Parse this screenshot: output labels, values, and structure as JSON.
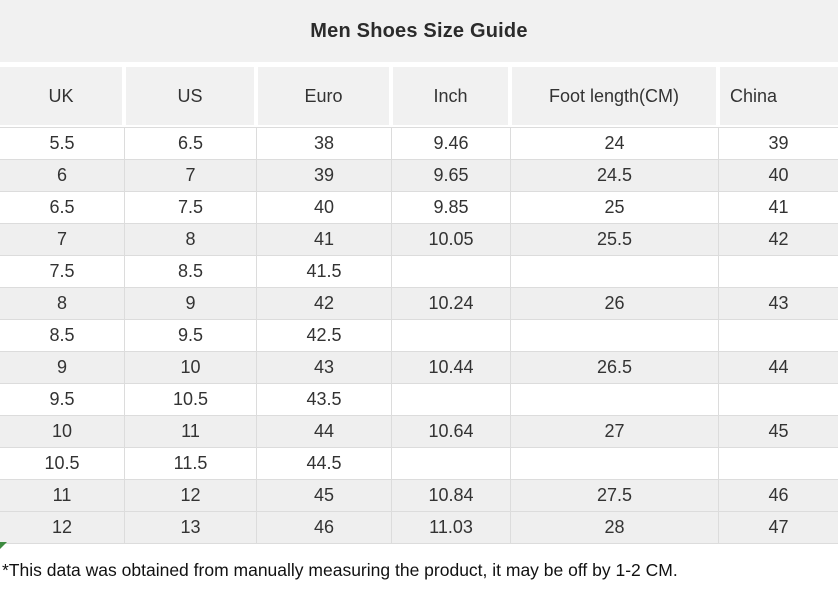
{
  "page": {
    "title": "Men Shoes Size Guide",
    "footnote": "*This data was obtained from manually measuring the product, it may be off by 1-2 CM."
  },
  "colors": {
    "band_bg": "#f1f1f1",
    "stripe_bg": "#efefef",
    "grid_line": "#dcdcdc",
    "text": "#333333",
    "marker_green": "#3d8b40"
  },
  "chart_data": {
    "type": "table",
    "title": "Men Shoes Size Guide",
    "columns": [
      "UK",
      "US",
      "Euro",
      "Inch",
      "Foot length(CM)",
      "China"
    ],
    "rows": [
      {
        "shaded": false,
        "cells": [
          "5.5",
          "6.5",
          "38",
          "9.46",
          "24",
          "39"
        ]
      },
      {
        "shaded": true,
        "cells": [
          "6",
          "7",
          "39",
          "9.65",
          "24.5",
          "40"
        ]
      },
      {
        "shaded": false,
        "cells": [
          "6.5",
          "7.5",
          "40",
          "9.85",
          "25",
          "41"
        ]
      },
      {
        "shaded": true,
        "cells": [
          "7",
          "8",
          "41",
          "10.05",
          "25.5",
          "42"
        ]
      },
      {
        "shaded": false,
        "cells": [
          "7.5",
          "8.5",
          "41.5",
          "",
          "",
          ""
        ]
      },
      {
        "shaded": true,
        "cells": [
          "8",
          "9",
          "42",
          "10.24",
          "26",
          "43"
        ]
      },
      {
        "shaded": false,
        "cells": [
          "8.5",
          "9.5",
          "42.5",
          "",
          "",
          ""
        ]
      },
      {
        "shaded": true,
        "cells": [
          "9",
          "10",
          "43",
          "10.44",
          "26.5",
          "44"
        ]
      },
      {
        "shaded": false,
        "cells": [
          "9.5",
          "10.5",
          "43.5",
          "",
          "",
          ""
        ]
      },
      {
        "shaded": true,
        "cells": [
          "10",
          "11",
          "44",
          "10.64",
          "27",
          "45"
        ]
      },
      {
        "shaded": false,
        "cells": [
          "10.5",
          "11.5",
          "44.5",
          "",
          "",
          ""
        ]
      },
      {
        "shaded": true,
        "cells": [
          "11",
          "12",
          "45",
          "10.84",
          "27.5",
          "46"
        ]
      },
      {
        "shaded": true,
        "cells": [
          "12",
          "13",
          "46",
          "11.03",
          "28",
          "47"
        ]
      }
    ],
    "footnote": "*This data was obtained from manually measuring the product, it may be off by 1-2 CM.",
    "layout": {
      "legend": "none",
      "grid": "on"
    }
  }
}
